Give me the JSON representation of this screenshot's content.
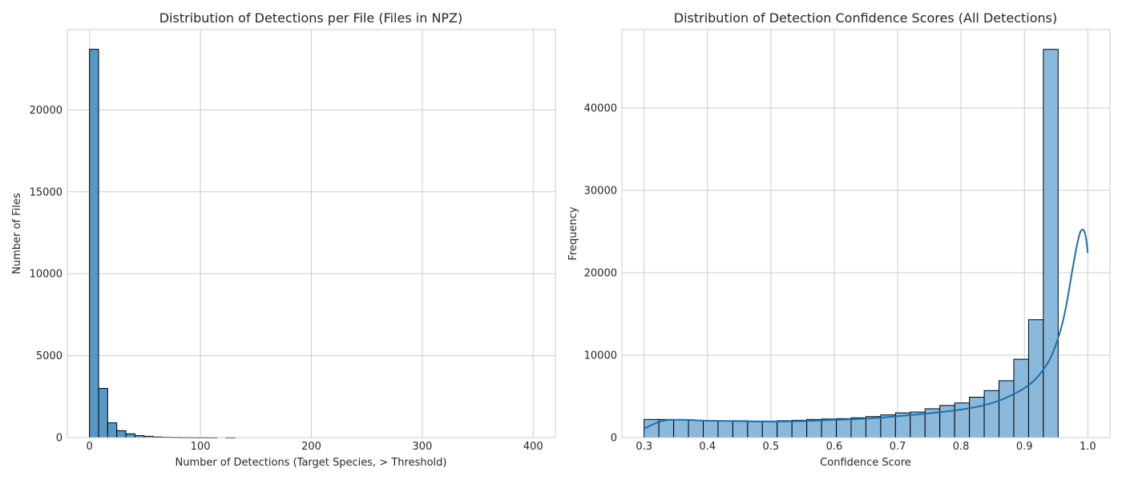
{
  "chart_data": [
    {
      "type": "bar",
      "title": "Distribution of Detections per File (Files in NPZ)",
      "xlabel": "Number of Detections (Target Species, > Threshold)",
      "ylabel": "Number of Files",
      "xlim": [
        -20,
        420
      ],
      "ylim": [
        0,
        24900
      ],
      "xticks": [
        0,
        100,
        200,
        300,
        400
      ],
      "yticks": [
        0,
        5000,
        10000,
        15000,
        20000
      ],
      "grid": true,
      "bin_width": 8.2,
      "bins_start": [
        0,
        8.2,
        16.4,
        24.6,
        32.8,
        41.0,
        49.2,
        57.4,
        65.6,
        73.8,
        82.0,
        90.2,
        98.4,
        106.6,
        123.0
      ],
      "values": [
        23700,
        3000,
        900,
        420,
        230,
        120,
        80,
        40,
        25,
        18,
        12,
        8,
        6,
        4,
        3
      ]
    },
    {
      "type": "bar",
      "title": "Distribution of Detection Confidence Scores (All Detections)",
      "xlabel": "Confidence Score",
      "ylabel": "Frequency",
      "xlim": [
        0.265,
        1.035
      ],
      "ylim": [
        0,
        49500
      ],
      "xticks": [
        0.3,
        0.4,
        0.5,
        0.6,
        0.7,
        0.8,
        0.9,
        1.0
      ],
      "yticks": [
        0,
        10000,
        20000,
        30000,
        40000
      ],
      "grid": true,
      "bin_start": 0.3,
      "bin_width": 0.02333,
      "values": [
        2200,
        2200,
        2150,
        2100,
        2050,
        2000,
        2050,
        2000,
        2000,
        2050,
        2100,
        2200,
        2250,
        2300,
        2400,
        2550,
        2750,
        3000,
        3100,
        3500,
        3900,
        4200,
        4900,
        5700,
        6900,
        9500,
        14300,
        47100
      ],
      "kde_x": [
        0.3,
        0.33,
        0.36,
        0.4,
        0.45,
        0.5,
        0.55,
        0.6,
        0.65,
        0.7,
        0.75,
        0.8,
        0.84,
        0.87,
        0.9,
        0.92,
        0.94,
        0.955,
        0.965,
        0.975,
        0.982,
        0.988,
        0.993,
        0.997,
        1.0
      ],
      "kde_y": [
        1100,
        2050,
        2150,
        2050,
        2000,
        1950,
        2000,
        2150,
        2300,
        2600,
        2950,
        3400,
        4000,
        4800,
        6000,
        7300,
        9500,
        12500,
        15600,
        20000,
        23000,
        24900,
        25200,
        24300,
        22400
      ]
    }
  ]
}
